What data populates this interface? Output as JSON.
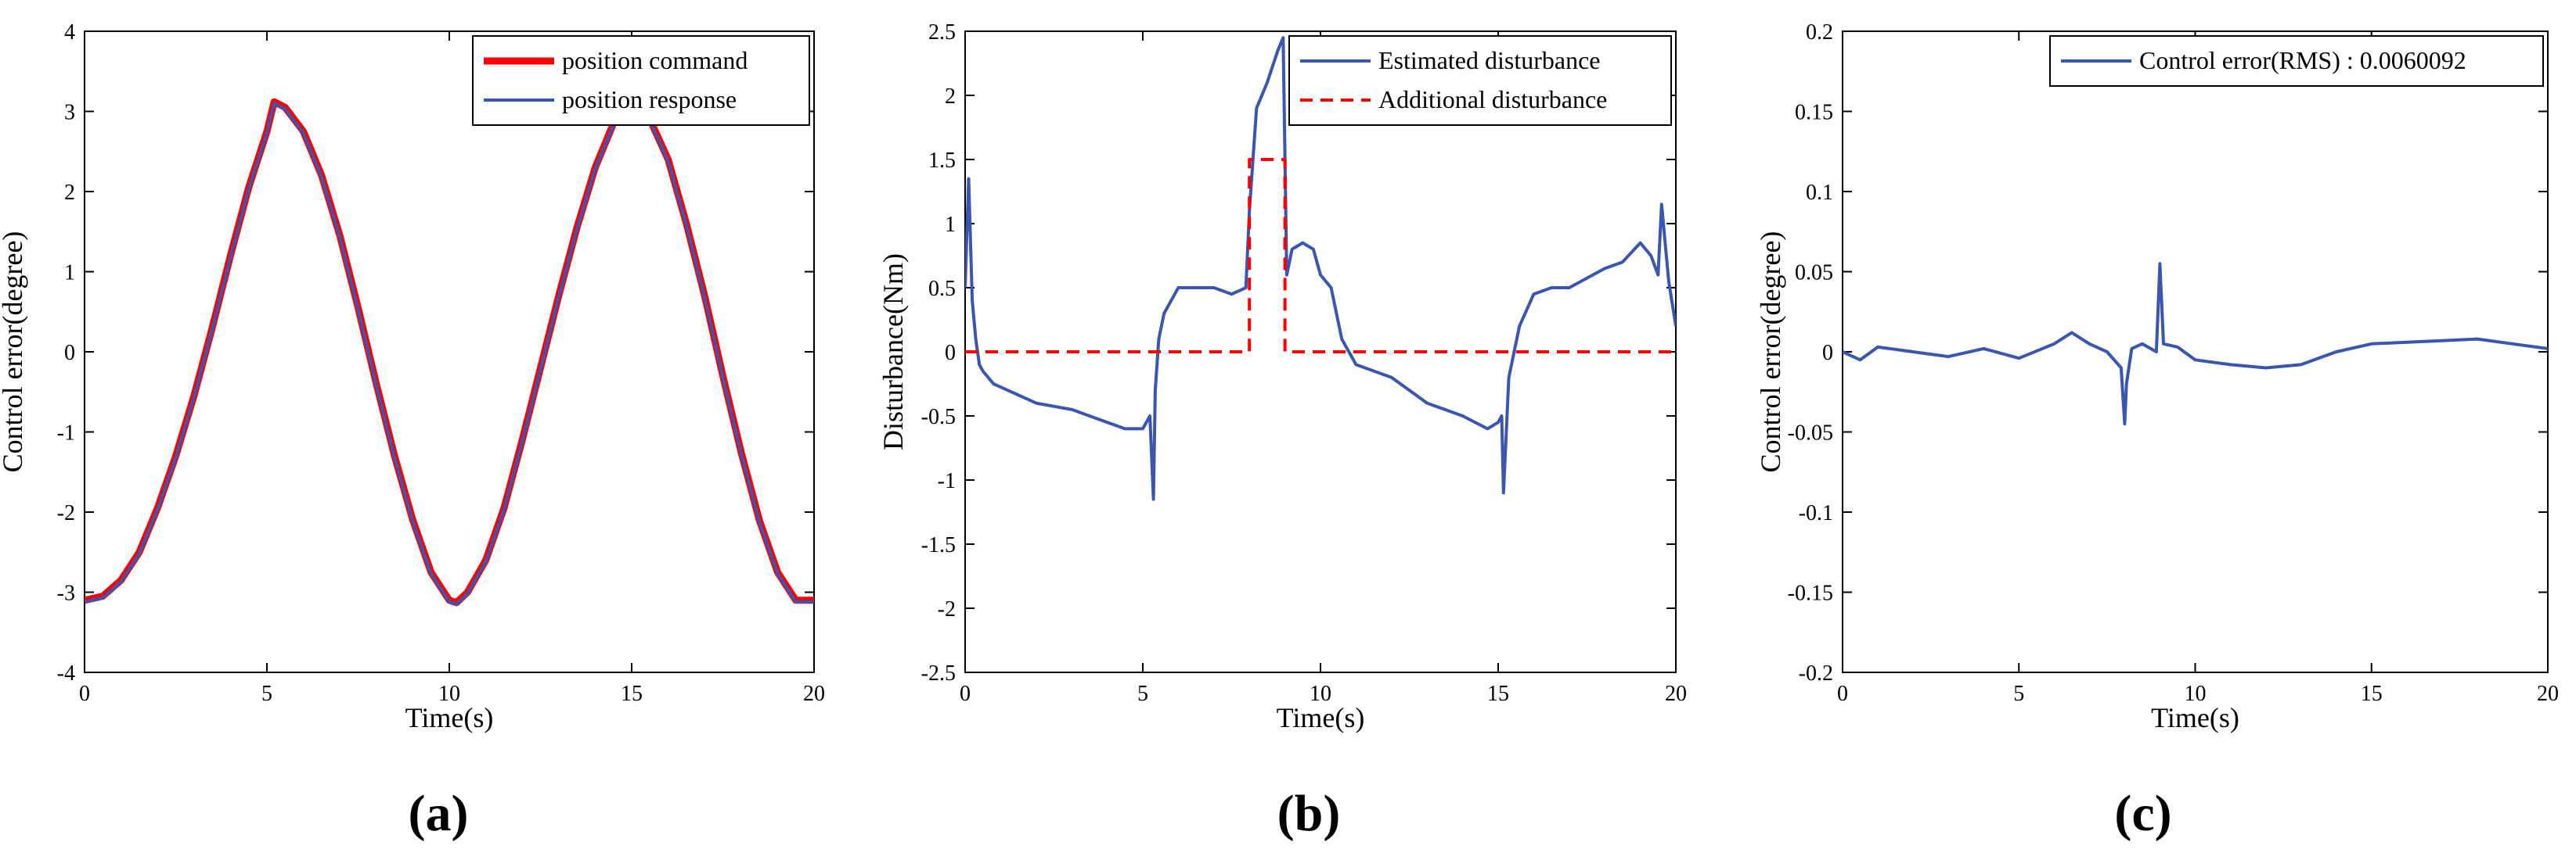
{
  "colors": {
    "command": "#ff0000",
    "response": "#3a56b0",
    "axis": "#000000"
  },
  "chart_data": [
    {
      "type": "line",
      "panel_label": "(a)",
      "xlabel": "Time(s)",
      "ylabel": "Control error(degree)",
      "xlim": [
        0,
        20
      ],
      "ylim": [
        -4,
        4
      ],
      "xticks": [
        0,
        5,
        10,
        15,
        20
      ],
      "yticks": [
        -4,
        -3,
        -2,
        -1,
        0,
        1,
        2,
        3,
        4
      ],
      "legend_position": "top-right",
      "series": [
        {
          "name": "position command",
          "style": "solid-thick",
          "color": "#ff0000",
          "x": [
            0,
            0.5,
            1,
            1.5,
            2,
            2.5,
            3,
            3.5,
            4,
            4.5,
            5,
            5.2,
            5.5,
            6,
            6.5,
            7,
            7.5,
            8,
            8.5,
            9,
            9.5,
            10,
            10.2,
            10.5,
            11,
            11.5,
            12,
            12.5,
            13,
            13.5,
            14,
            14.5,
            15,
            15.2,
            15.5,
            16,
            16.5,
            17,
            17.5,
            18,
            18.5,
            19,
            19.5,
            20
          ],
          "y": [
            -3.1,
            -3.05,
            -2.85,
            -2.5,
            -1.95,
            -1.3,
            -0.55,
            0.3,
            1.2,
            2.05,
            2.75,
            3.12,
            3.05,
            2.75,
            2.2,
            1.45,
            0.55,
            -0.4,
            -1.3,
            -2.1,
            -2.75,
            -3.1,
            -3.13,
            -3.0,
            -2.6,
            -1.95,
            -1.1,
            -0.2,
            0.7,
            1.55,
            2.3,
            2.85,
            3.12,
            3.1,
            2.9,
            2.4,
            1.6,
            0.7,
            -0.3,
            -1.25,
            -2.1,
            -2.75,
            -3.1,
            -3.1
          ]
        },
        {
          "name": "position response",
          "style": "solid",
          "color": "#3a56b0",
          "x": [
            0,
            0.5,
            1,
            1.5,
            2,
            2.5,
            3,
            3.5,
            4,
            4.5,
            5,
            5.2,
            5.5,
            6,
            6.5,
            7,
            7.5,
            8,
            8.5,
            9,
            9.5,
            10,
            10.2,
            10.5,
            11,
            11.5,
            12,
            12.5,
            13,
            13.5,
            14,
            14.5,
            15,
            15.2,
            15.5,
            16,
            16.5,
            17,
            17.5,
            18,
            18.5,
            19,
            19.5,
            20
          ],
          "y": [
            -3.12,
            -3.07,
            -2.87,
            -2.52,
            -1.97,
            -1.32,
            -0.57,
            0.28,
            1.18,
            2.03,
            2.73,
            3.1,
            3.03,
            2.73,
            2.18,
            1.43,
            0.53,
            -0.42,
            -1.32,
            -2.12,
            -2.77,
            -3.12,
            -3.15,
            -3.02,
            -2.62,
            -1.97,
            -1.12,
            -0.22,
            0.68,
            1.53,
            2.28,
            2.83,
            3.1,
            3.08,
            2.88,
            2.38,
            1.58,
            0.68,
            -0.32,
            -1.27,
            -2.12,
            -2.77,
            -3.12,
            -3.12
          ]
        }
      ]
    },
    {
      "type": "line",
      "panel_label": "(b)",
      "xlabel": "Time(s)",
      "ylabel": "Disturbance(Nm)",
      "xlim": [
        0,
        20
      ],
      "ylim": [
        -2.5,
        2.5
      ],
      "xticks": [
        0,
        5,
        10,
        15,
        20
      ],
      "yticks": [
        -2.5,
        -2,
        -1.5,
        -1,
        -0.5,
        0,
        0.5,
        1,
        1.5,
        2,
        2.5
      ],
      "legend_position": "top-right",
      "series": [
        {
          "name": "Estimated disturbance",
          "style": "solid",
          "color": "#3a56b0",
          "x": [
            0,
            0.1,
            0.2,
            0.3,
            0.4,
            0.5,
            0.8,
            1.2,
            2,
            3,
            4,
            4.5,
            5,
            5.2,
            5.3,
            5.35,
            5.45,
            5.6,
            6,
            6.5,
            7,
            7.5,
            7.9,
            8.0,
            8.2,
            8.5,
            8.8,
            8.95,
            9.05,
            9.2,
            9.5,
            9.8,
            10.0,
            10.3,
            10.6,
            11,
            12,
            13,
            14,
            14.7,
            15.0,
            15.1,
            15.15,
            15.3,
            15.6,
            16,
            16.5,
            17,
            18,
            18.5,
            19,
            19.3,
            19.5,
            19.6,
            19.8,
            20
          ],
          "y": [
            0.5,
            1.35,
            0.4,
            0.1,
            -0.1,
            -0.15,
            -0.25,
            -0.3,
            -0.4,
            -0.45,
            -0.55,
            -0.6,
            -0.6,
            -0.5,
            -1.15,
            -0.3,
            0.1,
            0.3,
            0.5,
            0.5,
            0.5,
            0.45,
            0.5,
            1.1,
            1.9,
            2.1,
            2.35,
            2.45,
            0.6,
            0.8,
            0.85,
            0.8,
            0.6,
            0.5,
            0.1,
            -0.1,
            -0.2,
            -0.4,
            -0.5,
            -0.6,
            -0.55,
            -0.5,
            -1.1,
            -0.2,
            0.2,
            0.45,
            0.5,
            0.5,
            0.65,
            0.7,
            0.85,
            0.75,
            0.6,
            1.15,
            0.55,
            0.2
          ]
        },
        {
          "name": "Additional disturbance",
          "style": "dashed",
          "color": "#ff0000",
          "x": [
            0,
            8,
            8,
            9,
            9,
            20
          ],
          "y": [
            0,
            0,
            1.5,
            1.5,
            0,
            0
          ]
        }
      ]
    },
    {
      "type": "line",
      "panel_label": "(c)",
      "xlabel": "Time(s)",
      "ylabel": "Control error(degree)",
      "xlim": [
        0,
        20
      ],
      "ylim": [
        -0.2,
        0.2
      ],
      "xticks": [
        0,
        5,
        10,
        15,
        20
      ],
      "yticks": [
        -0.2,
        -0.15,
        -0.1,
        -0.05,
        0,
        0.05,
        0.1,
        0.15,
        0.2
      ],
      "legend_position": "top-right",
      "series": [
        {
          "name": "Control error(RMS) : 0.0060092",
          "style": "solid",
          "color": "#3a56b0",
          "x": [
            0,
            0.5,
            1,
            2,
            3,
            4,
            5,
            6,
            6.5,
            7,
            7.5,
            7.9,
            8.0,
            8.05,
            8.2,
            8.5,
            8.9,
            9.0,
            9.1,
            9.5,
            10,
            11,
            12,
            13,
            14,
            15,
            16,
            17,
            18,
            19,
            20
          ],
          "y": [
            0,
            -0.005,
            0.003,
            0,
            -0.003,
            0.002,
            -0.004,
            0.005,
            0.012,
            0.005,
            0,
            -0.01,
            -0.045,
            -0.02,
            0.002,
            0.005,
            0,
            0.055,
            0.005,
            0.003,
            -0.005,
            -0.008,
            -0.01,
            -0.008,
            0,
            0.005,
            0.006,
            0.007,
            0.008,
            0.005,
            0.002
          ]
        }
      ]
    }
  ]
}
